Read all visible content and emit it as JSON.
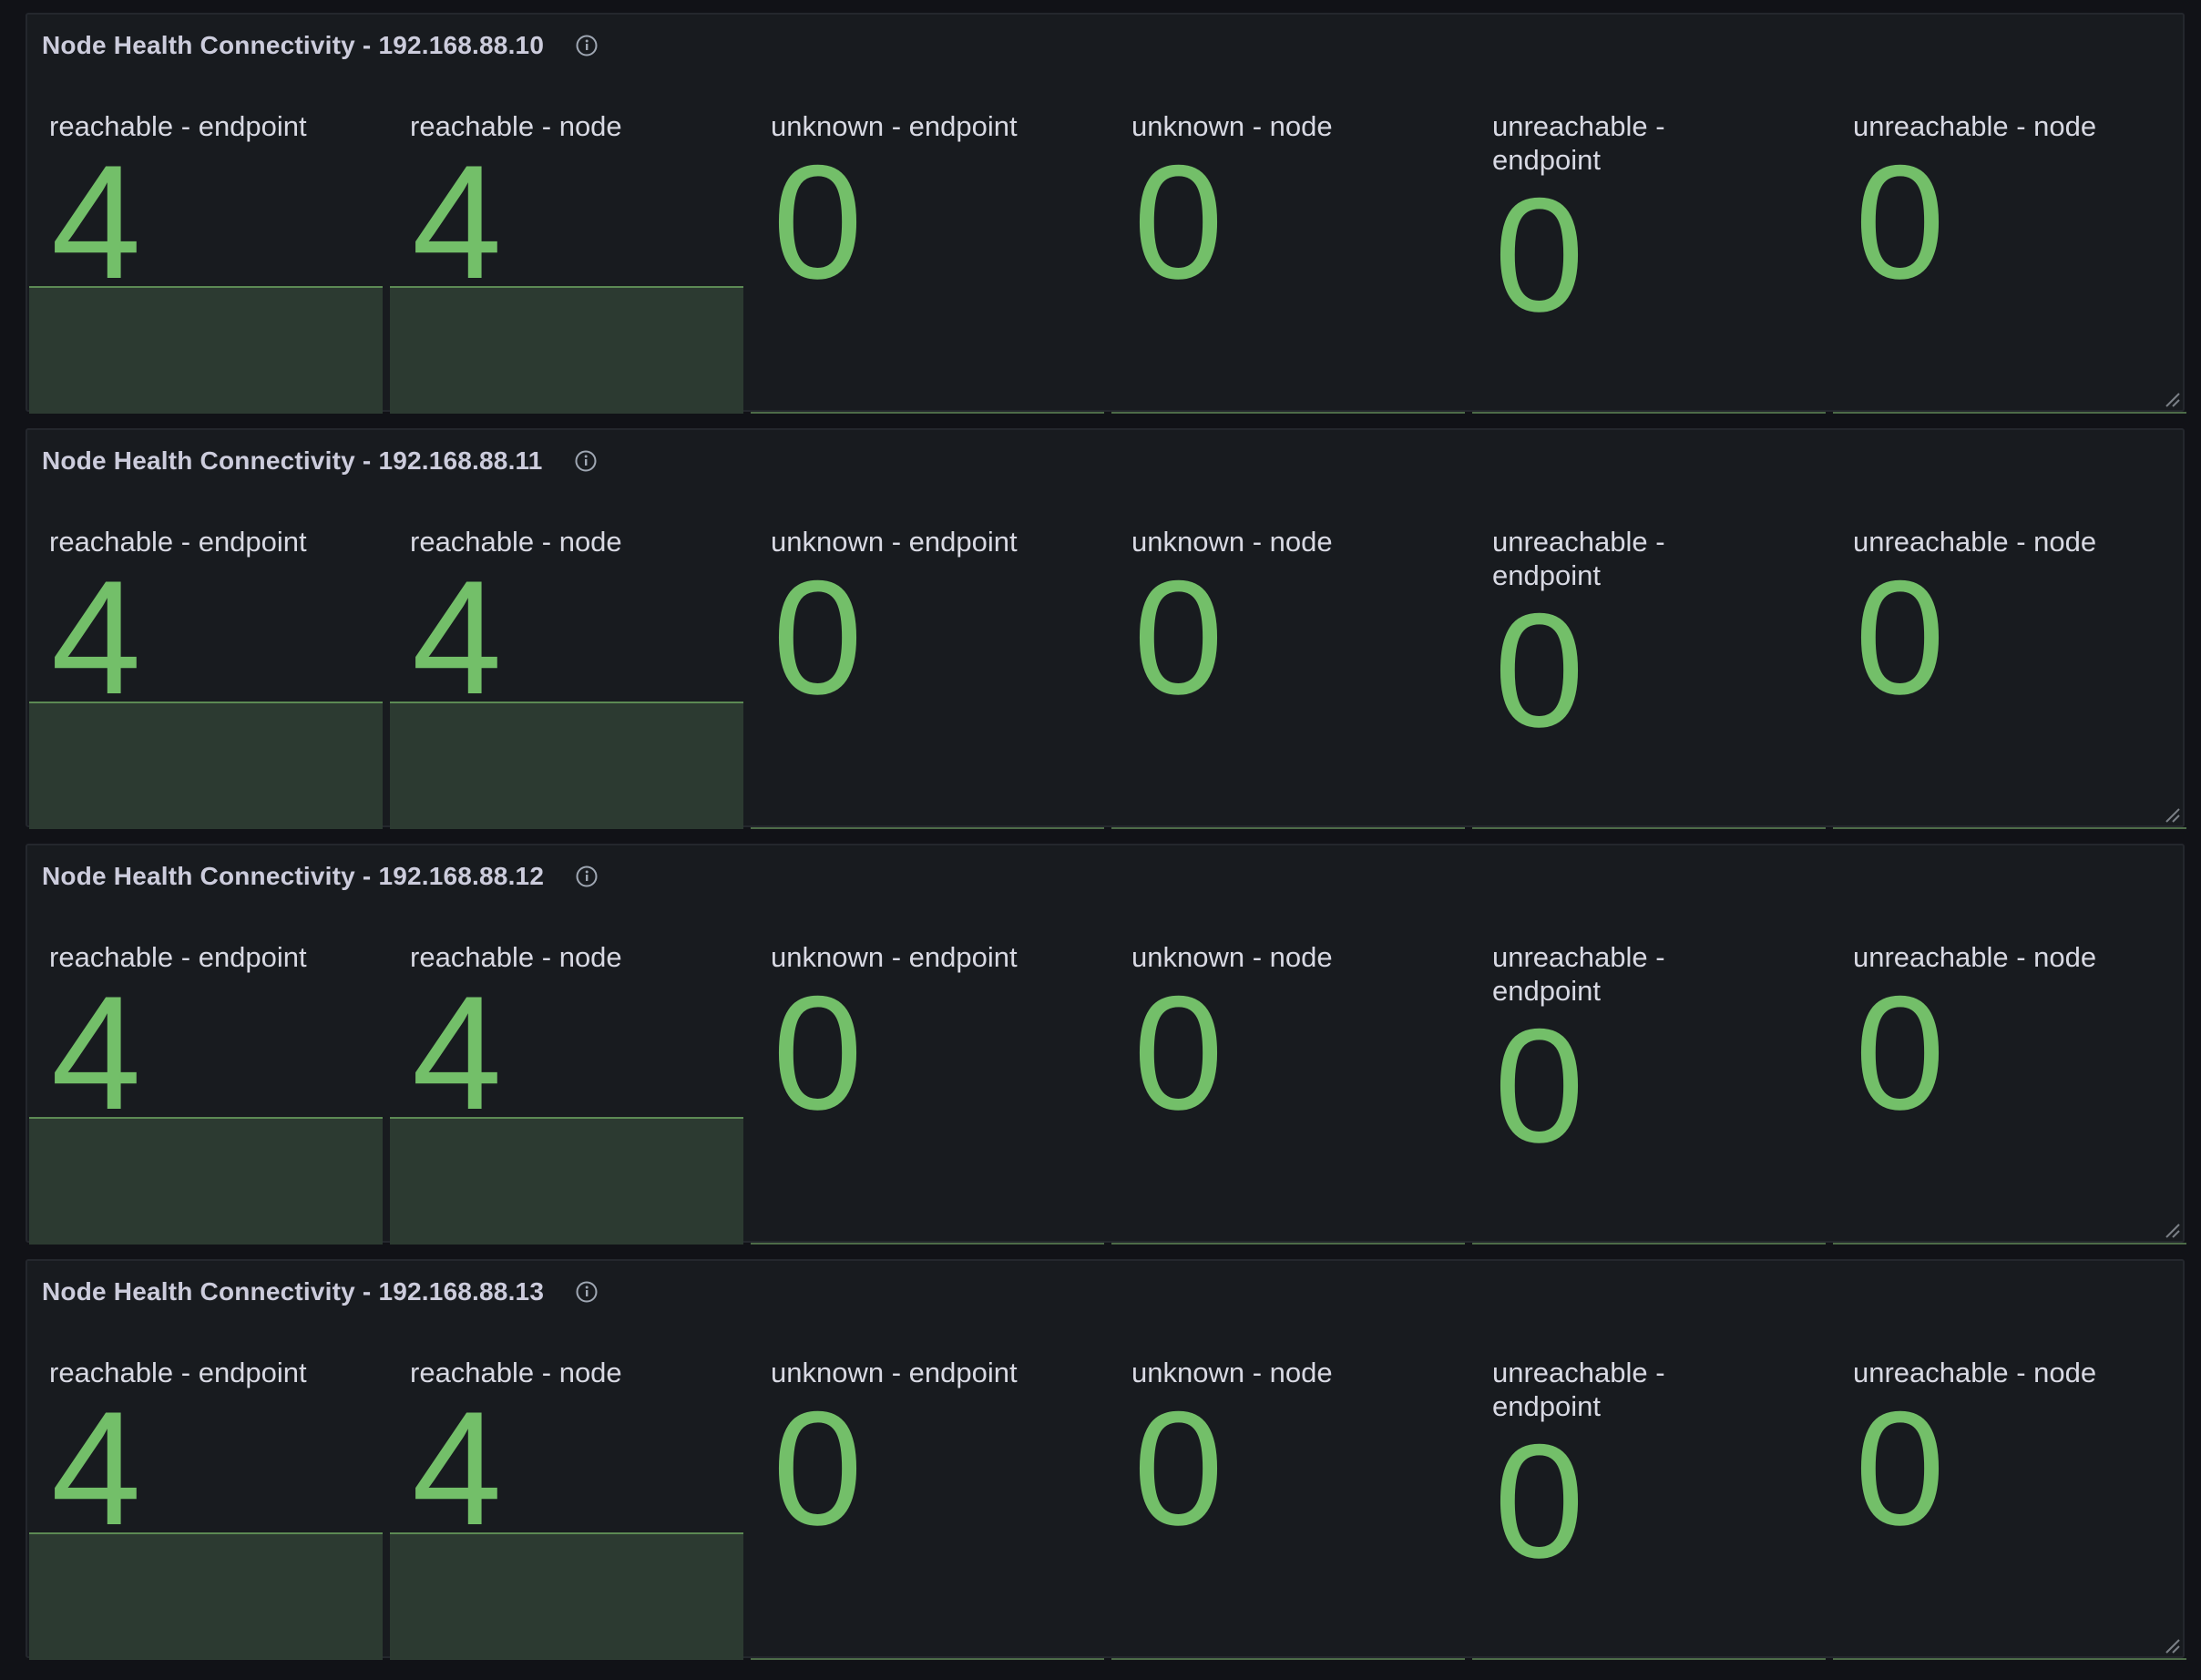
{
  "colors": {
    "background": "#111217",
    "panel": "#181b1f",
    "value_green": "#73bf69",
    "spark_fill": "#2c3a31",
    "label": "#d8d9e3"
  },
  "panels": [
    {
      "title": "Node Health Connectivity - 192.168.88.10",
      "stats": [
        {
          "label": "reachable - endpoint",
          "value": "4"
        },
        {
          "label": "reachable - node",
          "value": "4"
        },
        {
          "label": "unknown - endpoint",
          "value": "0"
        },
        {
          "label": "unknown - node",
          "value": "0"
        },
        {
          "label": "unreachable - endpoint",
          "value": "0"
        },
        {
          "label": "unreachable - node",
          "value": "0"
        }
      ]
    },
    {
      "title": "Node Health Connectivity - 192.168.88.11",
      "stats": [
        {
          "label": "reachable - endpoint",
          "value": "4"
        },
        {
          "label": "reachable - node",
          "value": "4"
        },
        {
          "label": "unknown - endpoint",
          "value": "0"
        },
        {
          "label": "unknown - node",
          "value": "0"
        },
        {
          "label": "unreachable - endpoint",
          "value": "0"
        },
        {
          "label": "unreachable - node",
          "value": "0"
        }
      ]
    },
    {
      "title": "Node Health Connectivity - 192.168.88.12",
      "stats": [
        {
          "label": "reachable - endpoint",
          "value": "4"
        },
        {
          "label": "reachable - node",
          "value": "4"
        },
        {
          "label": "unknown - endpoint",
          "value": "0"
        },
        {
          "label": "unknown - node",
          "value": "0"
        },
        {
          "label": "unreachable - endpoint",
          "value": "0"
        },
        {
          "label": "unreachable - node",
          "value": "0"
        }
      ]
    },
    {
      "title": "Node Health Connectivity - 192.168.88.13",
      "stats": [
        {
          "label": "reachable - endpoint",
          "value": "4"
        },
        {
          "label": "reachable - node",
          "value": "4"
        },
        {
          "label": "unknown - endpoint",
          "value": "0"
        },
        {
          "label": "unknown - node",
          "value": "0"
        },
        {
          "label": "unreachable - endpoint",
          "value": "0"
        },
        {
          "label": "unreachable - node",
          "value": "0"
        }
      ]
    }
  ]
}
